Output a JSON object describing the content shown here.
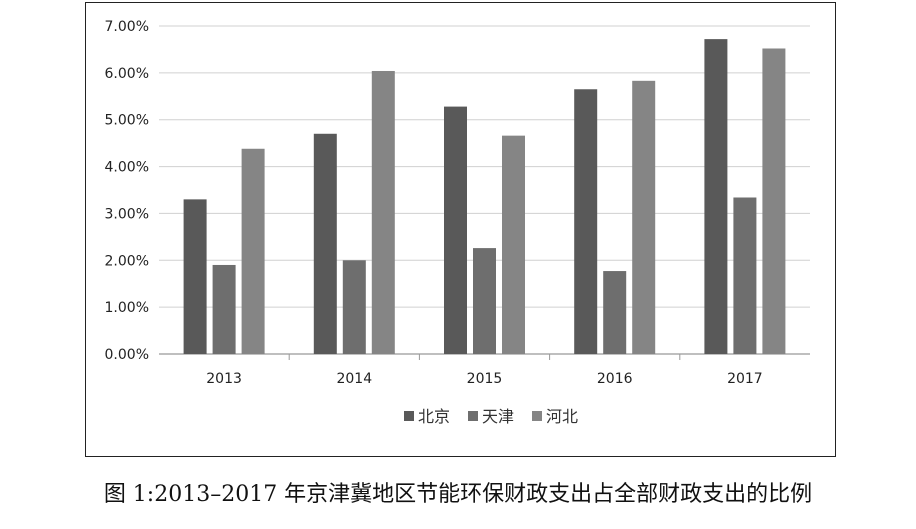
{
  "chart_data": {
    "type": "bar",
    "categories": [
      "2013",
      "2014",
      "2015",
      "2016",
      "2017"
    ],
    "series": [
      {
        "name": "北京",
        "values": [
          3.3,
          4.7,
          5.28,
          5.65,
          6.72
        ],
        "color": "#595959"
      },
      {
        "name": "天津",
        "values": [
          1.9,
          2.0,
          2.26,
          1.77,
          3.34
        ],
        "color": "#6e6e6e"
      },
      {
        "name": "河北",
        "values": [
          4.38,
          6.04,
          4.66,
          5.83,
          6.52
        ],
        "color": "#858585"
      }
    ],
    "ylim": [
      0,
      7
    ],
    "yticks": [
      "0.00%",
      "1.00%",
      "2.00%",
      "3.00%",
      "4.00%",
      "5.00%",
      "6.00%",
      "7.00%"
    ],
    "grid": true,
    "legend_position": "bottom"
  },
  "caption": "图 1:2013–2017 年京津冀地区节能环保财政支出占全部财政支出的比例"
}
